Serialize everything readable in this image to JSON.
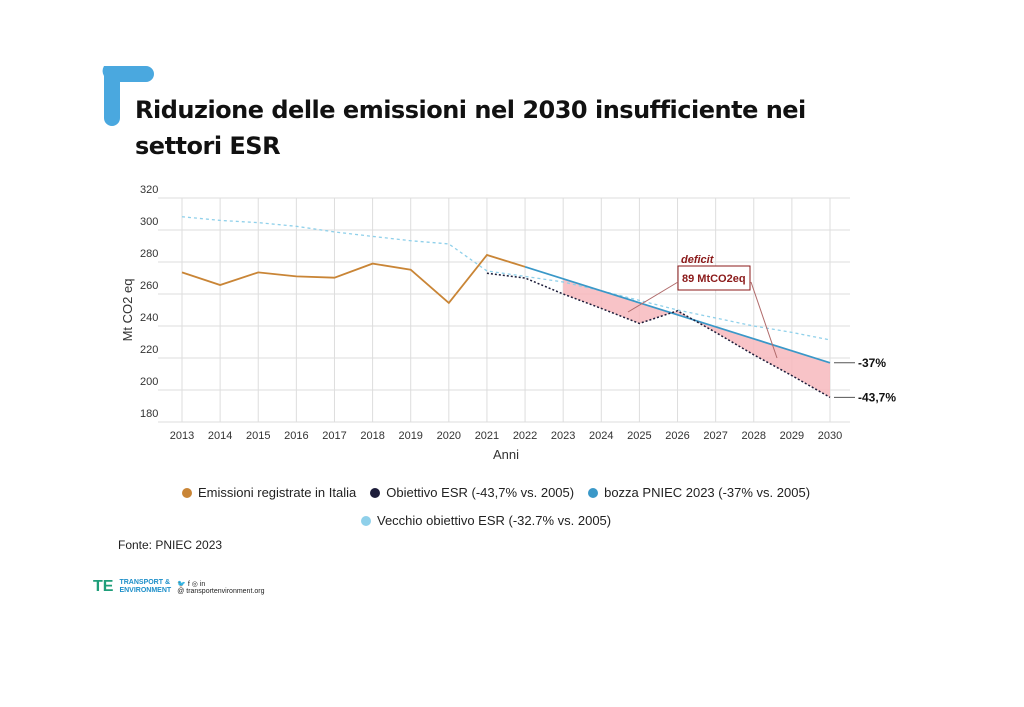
{
  "title": "Riduzione delle emissioni nel 2030 insufficiente nei settori ESR",
  "colors": {
    "accent": "#4aa8df",
    "emissions": "#c98536",
    "esr": "#1d1d3a",
    "pniec": "#3a98c8",
    "old": "#8fd0ea",
    "deficit": "#f7b9bd",
    "annotation": "#8b1a1a"
  },
  "chart_data": {
    "type": "line",
    "xlabel": "Anni",
    "ylabel": "Mt CO2 eq",
    "ylim": [
      180,
      320
    ],
    "yticks": [
      180,
      200,
      220,
      240,
      260,
      280,
      300,
      320
    ],
    "x": [
      2013,
      2014,
      2015,
      2016,
      2017,
      2018,
      2019,
      2020,
      2021,
      2022,
      2023,
      2024,
      2025,
      2026,
      2027,
      2028,
      2029,
      2030
    ],
    "grid": true,
    "legend_position": "bottom",
    "series": [
      {
        "name": "Emissioni registrate in Italia",
        "style": "solid",
        "x": [
          2013,
          2014,
          2015,
          2016,
          2017,
          2018,
          2019,
          2020,
          2021,
          2022
        ],
        "values": [
          273.5,
          265.6,
          273.5,
          271,
          270.2,
          279,
          275.2,
          254.4,
          284.4,
          277
        ]
      },
      {
        "name": "Obiettivo ESR (-43,7% vs. 2005)",
        "style": "dotted",
        "x": [
          2021,
          2022,
          2023,
          2024,
          2025,
          2026,
          2027,
          2028,
          2029,
          2030
        ],
        "values": [
          273,
          270,
          260,
          251,
          241.6,
          249.5,
          236,
          222,
          209,
          195.4
        ]
      },
      {
        "name": "bozza PNIEC 2023 (-37% vs. 2005)",
        "style": "solid",
        "x": [
          2022,
          2023,
          2024,
          2025,
          2026,
          2027,
          2028,
          2029,
          2030
        ],
        "values": [
          277,
          269.5,
          262,
          254.5,
          247,
          239.5,
          232,
          224.5,
          217
        ]
      },
      {
        "name": "Vecchio obiettivo ESR (-32.7% vs. 2005)",
        "style": "dashed",
        "x": [
          2013,
          2014,
          2015,
          2016,
          2017,
          2018,
          2019,
          2020,
          2021,
          2022,
          2023,
          2024,
          2025,
          2026,
          2027,
          2028,
          2029,
          2030
        ],
        "values": [
          308.3,
          306,
          304.6,
          302.3,
          298.8,
          296,
          293.3,
          291.3,
          274.4,
          271,
          267.5,
          262,
          256,
          250,
          245,
          240,
          236,
          231.3
        ]
      }
    ],
    "annotations": {
      "deficit_label": "deficit",
      "deficit_value": "89 MtCO2eq",
      "pniec_end": "-37%",
      "esr_end": "-43,7%"
    }
  },
  "source": "Fonte: PNIEC 2023",
  "footer": {
    "logo": "TE",
    "org_line1": "TRANSPORT &",
    "org_line2": "ENVIRONMENT",
    "website": "transportenvironment.org"
  }
}
